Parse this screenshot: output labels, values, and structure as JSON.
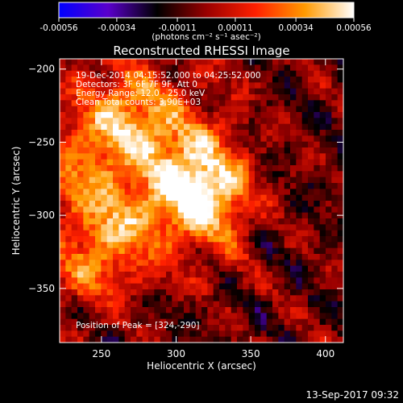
{
  "chart_data": {
    "type": "heatmap",
    "title": "Reconstructed RHESSI Image",
    "xlabel": "Heliocentric X (arcsec)",
    "ylabel": "Heliocentric Y (arcsec)",
    "xlim": [
      222,
      412
    ],
    "ylim": [
      -387,
      -193
    ],
    "x_ticks": [
      250,
      300,
      350,
      400
    ],
    "y_ticks": [
      -200,
      -250,
      -300,
      -350
    ],
    "colorbar": {
      "min": -0.00056,
      "max": 0.00056,
      "tick_values": [
        -0.00056,
        -0.00034,
        -0.00011,
        0.00011,
        0.00034,
        0.00056
      ],
      "tick_labels": [
        "-0.00056",
        "-0.00034",
        "-0.00011",
        "0.00011",
        "0.00034",
        "0.00056"
      ],
      "unit_label": "(photons cm⁻² s⁻¹ asec⁻²)",
      "colors": [
        "#0000ff",
        "#5a00cc",
        "#000000",
        "#990000",
        "#ff2000",
        "#ff9a00",
        "#ffffff"
      ]
    },
    "annotations": [
      "19-Dec-2014 04:15:52.000 to 04:25:52.000",
      "Detectors: 3F 6F 7F 9F, Att 0",
      "Energy Range: 12.0 - 25.0 keV",
      "Clean    Total counts: 3.90E+03"
    ],
    "peak": {
      "label": "Position of Peak = [324,-290]",
      "x": 324,
      "y": -290
    },
    "grid_cells": [
      48,
      48
    ],
    "sources": [
      {
        "x": 318,
        "y": -288,
        "value": 0.00056
      },
      {
        "x": 268,
        "y": -232,
        "value": 0.00042
      },
      {
        "x": 262,
        "y": -305,
        "value": 0.00033
      },
      {
        "x": 235,
        "y": -268,
        "value": 0.00025
      },
      {
        "x": 305,
        "y": -258,
        "value": 0.00028
      },
      {
        "x": 240,
        "y": -340,
        "value": 0.00022
      }
    ]
  },
  "footer": {
    "timestamp": "13-Sep-2017 09:32"
  }
}
